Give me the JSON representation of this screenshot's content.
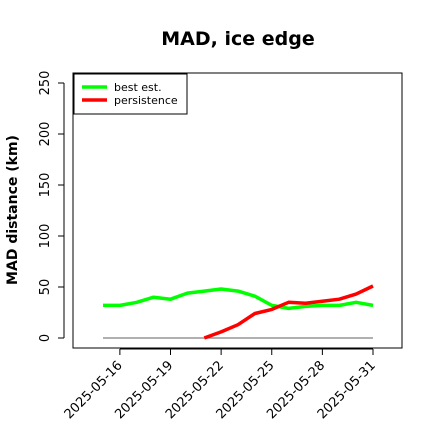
{
  "chart_data": {
    "type": "line",
    "title": "MAD, ice edge",
    "xlabel": "",
    "ylabel": "MAD distance (km)",
    "ylim": [
      0,
      250
    ],
    "yticks": [
      0,
      50,
      100,
      150,
      200,
      250
    ],
    "x": [
      "2025-05-15",
      "2025-05-16",
      "2025-05-17",
      "2025-05-18",
      "2025-05-19",
      "2025-05-20",
      "2025-05-21",
      "2025-05-22",
      "2025-05-23",
      "2025-05-24",
      "2025-05-25",
      "2025-05-26",
      "2025-05-27",
      "2025-05-28",
      "2025-05-29",
      "2025-05-30",
      "2025-05-31"
    ],
    "xtick_labels": [
      "2025-05-16",
      "2025-05-19",
      "2025-05-22",
      "2025-05-25",
      "2025-05-28",
      "2025-05-31"
    ],
    "legend_position": "top-left",
    "series": [
      {
        "name": "best est.",
        "color": "#00ff00",
        "values": [
          32,
          32,
          35,
          40,
          38,
          44,
          46,
          48,
          46,
          41,
          32,
          29,
          31,
          32,
          32,
          35,
          32
        ]
      },
      {
        "name": "persistence",
        "color": "#ff0000",
        "values": [
          null,
          null,
          null,
          null,
          null,
          null,
          0,
          6,
          13,
          24,
          28,
          35,
          34,
          36,
          38,
          43,
          51
        ]
      }
    ],
    "reference_line": {
      "value": 0,
      "color": "#808080"
    }
  }
}
